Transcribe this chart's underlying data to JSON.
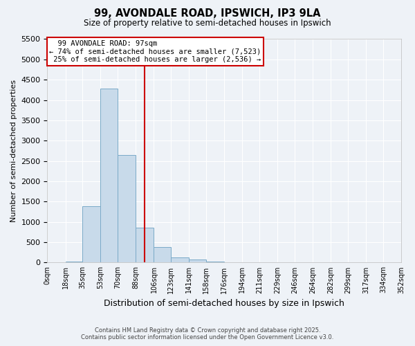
{
  "title_line1": "99, AVONDALE ROAD, IPSWICH, IP3 9LA",
  "title_line2": "Size of property relative to semi-detached houses in Ipswich",
  "xlabel": "Distribution of semi-detached houses by size in Ipswich",
  "ylabel": "Number of semi-detached properties",
  "bin_edges": [
    0,
    18,
    35,
    53,
    70,
    88,
    106,
    123,
    141,
    158,
    176,
    194,
    211,
    229,
    246,
    264,
    282,
    299,
    317,
    334,
    352
  ],
  "bin_counts": [
    5,
    20,
    1380,
    4280,
    2650,
    860,
    380,
    120,
    80,
    30,
    15,
    8,
    5,
    3,
    2,
    2,
    2,
    2,
    2,
    2
  ],
  "bar_color": "#c8daea",
  "bar_edge_color": "#7aaac8",
  "property_size": 97,
  "property_label": "99 AVONDALE ROAD: 97sqm",
  "pct_smaller": 74,
  "count_smaller": 7523,
  "pct_larger": 25,
  "count_larger": 2536,
  "vline_color": "#cc0000",
  "annotation_box_color": "#cc0000",
  "ylim": [
    0,
    5500
  ],
  "yticks": [
    0,
    500,
    1000,
    1500,
    2000,
    2500,
    3000,
    3500,
    4000,
    4500,
    5000,
    5500
  ],
  "bg_color": "#eef2f7",
  "grid_color": "#ffffff",
  "footer_line1": "Contains HM Land Registry data © Crown copyright and database right 2025.",
  "footer_line2": "Contains public sector information licensed under the Open Government Licence v3.0."
}
